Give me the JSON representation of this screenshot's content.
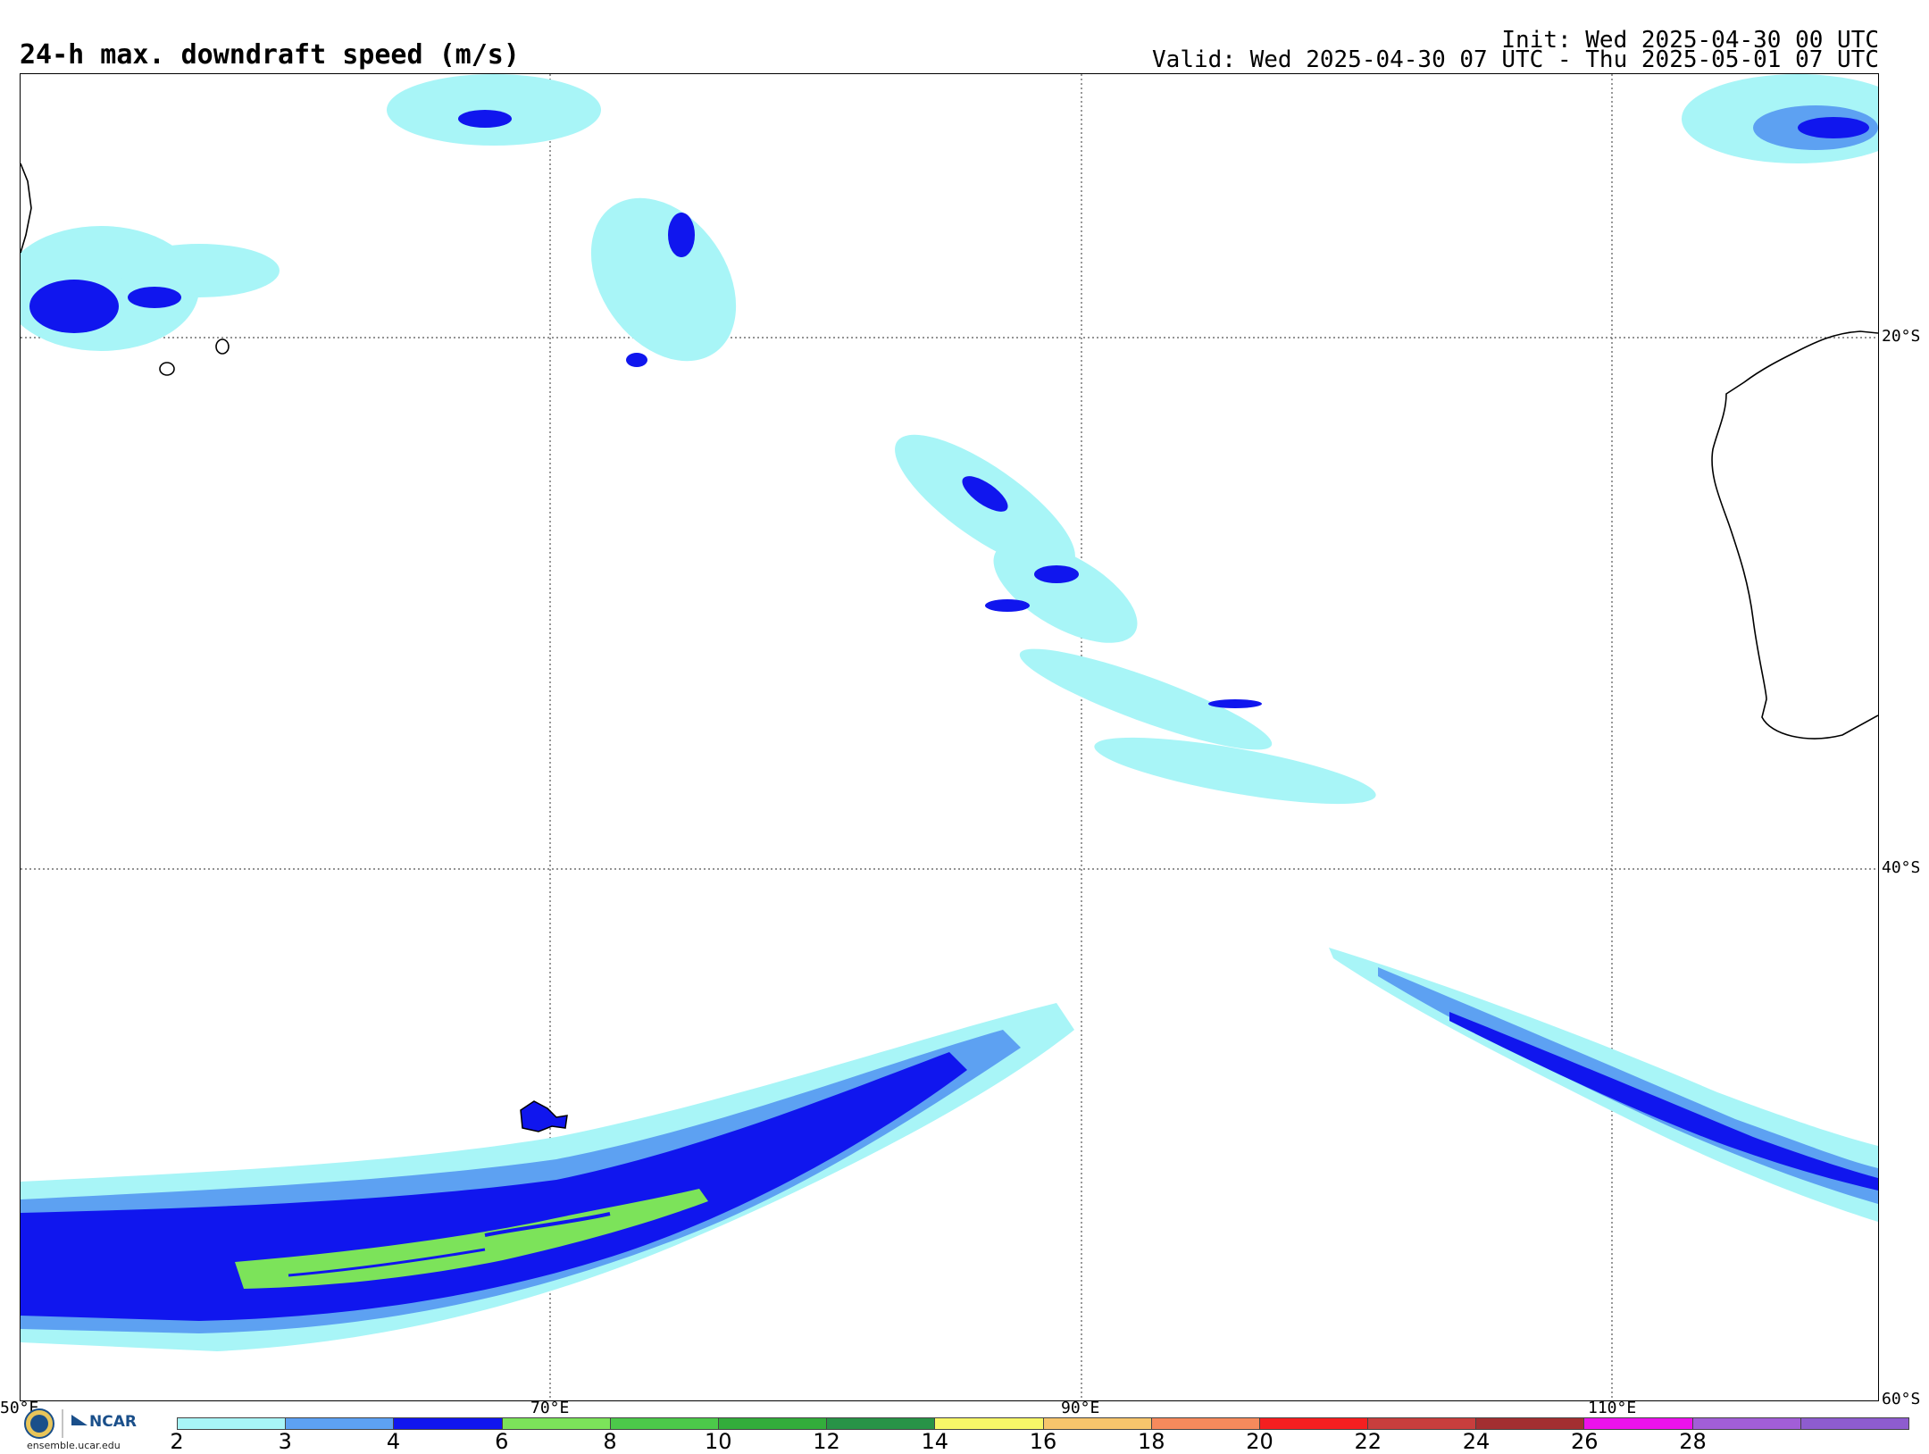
{
  "header": {
    "title": "24-h max. downdraft speed (m/s)",
    "init": "Init: Wed 2025-04-30 00 UTC",
    "valid": "Valid: Wed 2025-04-30 07 UTC - Thu 2025-05-01 07 UTC"
  },
  "map": {
    "lat_labels": [
      "20°S",
      "40°S",
      "60°S"
    ],
    "lon_labels": [
      "50°E",
      "70°E",
      "90°E",
      "110°E"
    ]
  },
  "branding": {
    "org": "NCAR",
    "site": "ensemble.ucar.edu"
  },
  "colorbar": {
    "colors": [
      "#a8f5f7",
      "#5da1f2",
      "#1016ee",
      "#7ce35a",
      "#4cc94a",
      "#33ad3b",
      "#289347",
      "#f7f768",
      "#f7c56c",
      "#f68a5c",
      "#f51f20",
      "#c83e3d",
      "#a32f31",
      "#ec12ec",
      "#a25ed7",
      "#8e5ccf"
    ],
    "tick_labels": [
      "2",
      "3",
      "4",
      "6",
      "8",
      "10",
      "12",
      "14",
      "16",
      "18",
      "20",
      "22",
      "24",
      "26",
      "28"
    ]
  }
}
